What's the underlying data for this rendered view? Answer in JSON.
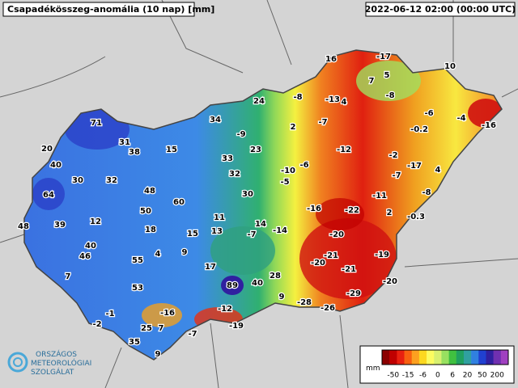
{
  "header": {
    "title": "Csapadékösszeg-anomália (10 nap) [mm]",
    "timestamp": "2022-06-12 02:00 (00:00 UTC)"
  },
  "stations": [
    16,
    -17,
    10,
    7,
    5,
    24,
    -8,
    -13,
    4,
    -8,
    34,
    -9,
    2,
    -7,
    -6,
    -4,
    -16,
    71,
    31,
    38,
    15,
    23,
    -12,
    -0.2,
    20,
    33,
    -2,
    40,
    -10,
    -6,
    -17,
    4,
    30,
    32,
    32,
    -5,
    -7,
    48,
    30,
    -11,
    -8,
    64,
    60,
    -16,
    -22,
    2,
    -0.3,
    12,
    50,
    11,
    14,
    48,
    39,
    18,
    15,
    13,
    -7,
    -14,
    -20,
    40,
    46,
    4,
    9,
    55,
    -21,
    -19,
    -20,
    17,
    -21,
    7,
    28,
    53,
    89,
    40,
    -20,
    9,
    -29,
    -28,
    -26,
    -1,
    -16,
    -12,
    -2,
    25,
    7,
    -19,
    -7,
    35,
    9
  ],
  "legend": {
    "unit": "mm",
    "ticks": [
      -50,
      -15,
      -6,
      0,
      6,
      20,
      50,
      200
    ],
    "colors": [
      "#8b0000",
      "#c00000",
      "#e82010",
      "#f86010",
      "#fca020",
      "#fcd820",
      "#fcfc60",
      "#d8f070",
      "#98e060",
      "#40c040",
      "#20a060",
      "#30a0a0",
      "#3080e0",
      "#2040d0",
      "#3020a0",
      "#7030b0",
      "#a040c0"
    ]
  },
  "logo": {
    "lines": [
      "ORSZÁGOS",
      "METEOROLÓGIAI",
      "SZOLGÁLAT"
    ]
  }
}
